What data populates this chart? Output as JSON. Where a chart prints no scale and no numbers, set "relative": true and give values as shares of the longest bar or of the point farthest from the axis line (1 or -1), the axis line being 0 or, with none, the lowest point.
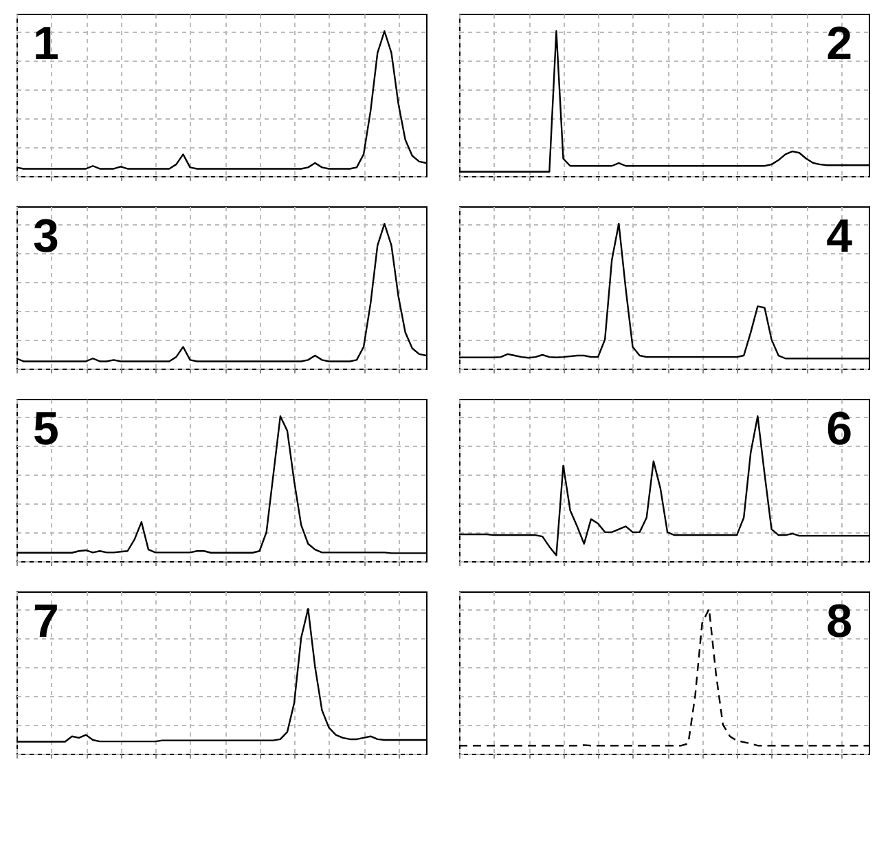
{
  "chart_data": [
    {
      "type": "line",
      "relative": true,
      "grid": true,
      "line_style": "solid",
      "annotations": [
        "1"
      ],
      "categories": [
        null,
        null,
        null,
        null,
        null,
        null,
        null,
        null,
        null,
        null,
        null,
        null,
        null,
        null,
        null,
        null,
        null,
        null,
        null,
        null,
        null,
        null,
        null,
        null,
        null,
        null,
        null,
        null,
        null,
        null,
        null,
        null,
        null,
        null,
        null,
        null,
        null,
        null,
        null,
        null,
        null,
        null,
        null,
        null,
        null,
        null,
        null,
        null,
        null,
        null,
        null,
        null,
        null,
        null,
        null,
        null,
        null,
        null,
        null,
        null
      ],
      "series": [
        {
          "color": "#000000",
          "values": [
            0.06,
            0.05,
            0.05,
            0.05,
            0.05,
            0.05,
            0.05,
            0.05,
            0.05,
            0.05,
            0.05,
            0.07,
            0.05,
            0.05,
            0.05,
            0.065,
            0.05,
            0.05,
            0.05,
            0.05,
            0.05,
            0.05,
            0.05,
            0.08,
            0.15,
            0.06,
            0.05,
            0.05,
            0.05,
            0.05,
            0.05,
            0.05,
            0.05,
            0.05,
            0.05,
            0.05,
            0.05,
            0.05,
            0.05,
            0.05,
            0.05,
            0.05,
            0.06,
            0.09,
            0.06,
            0.05,
            0.05,
            0.05,
            0.05,
            0.06,
            0.15,
            0.45,
            0.85,
            1.0,
            0.85,
            0.5,
            0.25,
            0.14,
            0.1,
            0.09
          ]
        }
      ]
    },
    {
      "type": "line",
      "relative": true,
      "grid": true,
      "line_style": "solid",
      "annotations": [
        "2"
      ],
      "categories": [
        null,
        null,
        null,
        null,
        null,
        null,
        null,
        null,
        null,
        null,
        null,
        null,
        null,
        null,
        null,
        null,
        null,
        null,
        null,
        null,
        null,
        null,
        null,
        null,
        null,
        null,
        null,
        null,
        null,
        null,
        null,
        null,
        null,
        null,
        null,
        null,
        null,
        null,
        null,
        null,
        null,
        null,
        null,
        null,
        null,
        null,
        null,
        null,
        null,
        null,
        null,
        null,
        null,
        null,
        null,
        null,
        null,
        null,
        null,
        null
      ],
      "series": [
        {
          "color": "#000000",
          "values": [
            0.03,
            0.03,
            0.03,
            0.03,
            0.03,
            0.03,
            0.03,
            0.03,
            0.03,
            0.03,
            0.03,
            0.03,
            0.03,
            0.03,
            1.0,
            0.12,
            0.07,
            0.07,
            0.07,
            0.07,
            0.07,
            0.07,
            0.07,
            0.09,
            0.07,
            0.07,
            0.07,
            0.07,
            0.07,
            0.07,
            0.07,
            0.07,
            0.07,
            0.07,
            0.07,
            0.07,
            0.07,
            0.07,
            0.07,
            0.07,
            0.07,
            0.07,
            0.07,
            0.07,
            0.07,
            0.08,
            0.11,
            0.15,
            0.17,
            0.16,
            0.12,
            0.09,
            0.08,
            0.075,
            0.075,
            0.075,
            0.075,
            0.075,
            0.075,
            0.075
          ]
        }
      ]
    },
    {
      "type": "line",
      "relative": true,
      "grid": true,
      "line_style": "solid",
      "annotations": [
        "3"
      ],
      "categories": [
        null,
        null,
        null,
        null,
        null,
        null,
        null,
        null,
        null,
        null,
        null,
        null,
        null,
        null,
        null,
        null,
        null,
        null,
        null,
        null,
        null,
        null,
        null,
        null,
        null,
        null,
        null,
        null,
        null,
        null,
        null,
        null,
        null,
        null,
        null,
        null,
        null,
        null,
        null,
        null,
        null,
        null,
        null,
        null,
        null,
        null,
        null,
        null,
        null,
        null,
        null,
        null,
        null,
        null,
        null,
        null,
        null,
        null,
        null,
        null
      ],
      "series": [
        {
          "color": "#000000",
          "values": [
            0.07,
            0.05,
            0.05,
            0.05,
            0.05,
            0.05,
            0.05,
            0.05,
            0.05,
            0.05,
            0.05,
            0.07,
            0.05,
            0.05,
            0.06,
            0.05,
            0.05,
            0.05,
            0.05,
            0.05,
            0.05,
            0.05,
            0.05,
            0.08,
            0.15,
            0.06,
            0.05,
            0.05,
            0.05,
            0.05,
            0.05,
            0.05,
            0.05,
            0.05,
            0.05,
            0.05,
            0.05,
            0.05,
            0.05,
            0.05,
            0.05,
            0.05,
            0.06,
            0.09,
            0.06,
            0.05,
            0.05,
            0.05,
            0.05,
            0.06,
            0.15,
            0.45,
            0.85,
            1.0,
            0.85,
            0.5,
            0.25,
            0.14,
            0.1,
            0.09
          ]
        }
      ]
    },
    {
      "type": "line",
      "relative": true,
      "grid": true,
      "line_style": "solid",
      "annotations": [
        "4"
      ],
      "categories": [
        null,
        null,
        null,
        null,
        null,
        null,
        null,
        null,
        null,
        null,
        null,
        null,
        null,
        null,
        null,
        null,
        null,
        null,
        null,
        null,
        null,
        null,
        null,
        null,
        null,
        null,
        null,
        null,
        null,
        null,
        null,
        null,
        null,
        null,
        null,
        null,
        null,
        null,
        null,
        null,
        null,
        null,
        null,
        null,
        null,
        null,
        null,
        null,
        null,
        null,
        null,
        null,
        null,
        null,
        null,
        null,
        null,
        null,
        null,
        null
      ],
      "series": [
        {
          "color": "#000000",
          "values": [
            0.077,
            0.077,
            0.077,
            0.077,
            0.077,
            0.077,
            0.08,
            0.1,
            0.09,
            0.08,
            0.075,
            0.08,
            0.095,
            0.08,
            0.077,
            0.08,
            0.085,
            0.09,
            0.09,
            0.08,
            0.08,
            0.2,
            0.75,
            1.0,
            0.55,
            0.15,
            0.09,
            0.08,
            0.08,
            0.08,
            0.08,
            0.08,
            0.08,
            0.08,
            0.08,
            0.08,
            0.08,
            0.08,
            0.08,
            0.08,
            0.08,
            0.09,
            0.25,
            0.43,
            0.42,
            0.2,
            0.09,
            0.07,
            0.07,
            0.07,
            0.07,
            0.07,
            0.07,
            0.07,
            0.07,
            0.07,
            0.07,
            0.07,
            0.07,
            0.07
          ]
        }
      ]
    },
    {
      "type": "line",
      "relative": true,
      "grid": true,
      "line_style": "solid",
      "annotations": [
        "5"
      ],
      "categories": [
        null,
        null,
        null,
        null,
        null,
        null,
        null,
        null,
        null,
        null,
        null,
        null,
        null,
        null,
        null,
        null,
        null,
        null,
        null,
        null,
        null,
        null,
        null,
        null,
        null,
        null,
        null,
        null,
        null,
        null,
        null,
        null,
        null,
        null,
        null,
        null,
        null,
        null,
        null,
        null,
        null,
        null,
        null,
        null,
        null,
        null,
        null,
        null,
        null,
        null,
        null,
        null,
        null,
        null,
        null,
        null,
        null,
        null,
        null,
        null
      ],
      "series": [
        {
          "color": "#000000",
          "values": [
            0.058,
            0.058,
            0.058,
            0.058,
            0.058,
            0.058,
            0.058,
            0.058,
            0.058,
            0.07,
            0.075,
            0.06,
            0.07,
            0.06,
            0.06,
            0.065,
            0.07,
            0.15,
            0.27,
            0.08,
            0.06,
            0.06,
            0.06,
            0.06,
            0.06,
            0.06,
            0.07,
            0.07,
            0.058,
            0.058,
            0.058,
            0.058,
            0.058,
            0.058,
            0.058,
            0.07,
            0.2,
            0.6,
            1.0,
            0.9,
            0.55,
            0.25,
            0.12,
            0.08,
            0.06,
            0.06,
            0.06,
            0.06,
            0.06,
            0.06,
            0.06,
            0.06,
            0.06,
            0.06,
            0.055,
            0.055,
            0.055,
            0.055,
            0.055,
            0.055
          ]
        }
      ]
    },
    {
      "type": "line",
      "relative": true,
      "grid": true,
      "line_style": "solid",
      "annotations": [
        "6"
      ],
      "categories": [
        null,
        null,
        null,
        null,
        null,
        null,
        null,
        null,
        null,
        null,
        null,
        null,
        null,
        null,
        null,
        null,
        null,
        null,
        null,
        null,
        null,
        null,
        null,
        null,
        null,
        null,
        null,
        null,
        null,
        null,
        null,
        null,
        null,
        null,
        null,
        null,
        null,
        null,
        null,
        null,
        null,
        null,
        null,
        null,
        null,
        null,
        null,
        null,
        null,
        null,
        null,
        null,
        null,
        null,
        null,
        null,
        null,
        null,
        null,
        null
      ],
      "series": [
        {
          "color": "#000000",
          "values": [
            0.185,
            0.185,
            0.185,
            0.185,
            0.185,
            0.18,
            0.18,
            0.18,
            0.18,
            0.18,
            0.18,
            0.18,
            0.17,
            0.1,
            0.04,
            0.66,
            0.35,
            0.24,
            0.12,
            0.29,
            0.26,
            0.2,
            0.2,
            0.22,
            0.24,
            0.2,
            0.2,
            0.3,
            0.69,
            0.5,
            0.2,
            0.18,
            0.18,
            0.18,
            0.18,
            0.18,
            0.18,
            0.18,
            0.18,
            0.18,
            0.18,
            0.3,
            0.75,
            1.0,
            0.6,
            0.22,
            0.18,
            0.18,
            0.19,
            0.175,
            0.175,
            0.175,
            0.175,
            0.175,
            0.175,
            0.175,
            0.175,
            0.175,
            0.175,
            0.175
          ]
        }
      ]
    },
    {
      "type": "line",
      "relative": true,
      "grid": true,
      "line_style": "solid",
      "annotations": [
        "7"
      ],
      "categories": [
        null,
        null,
        null,
        null,
        null,
        null,
        null,
        null,
        null,
        null,
        null,
        null,
        null,
        null,
        null,
        null,
        null,
        null,
        null,
        null,
        null,
        null,
        null,
        null,
        null,
        null,
        null,
        null,
        null,
        null,
        null,
        null,
        null,
        null,
        null,
        null,
        null,
        null,
        null,
        null,
        null,
        null,
        null,
        null,
        null,
        null,
        null,
        null,
        null,
        null,
        null,
        null,
        null,
        null,
        null,
        null,
        null,
        null,
        null,
        null
      ],
      "series": [
        {
          "color": "#000000",
          "values": [
            0.083,
            0.083,
            0.083,
            0.083,
            0.083,
            0.083,
            0.083,
            0.083,
            0.12,
            0.11,
            0.13,
            0.095,
            0.085,
            0.085,
            0.085,
            0.085,
            0.085,
            0.085,
            0.085,
            0.085,
            0.085,
            0.092,
            0.092,
            0.092,
            0.092,
            0.092,
            0.092,
            0.092,
            0.092,
            0.092,
            0.092,
            0.092,
            0.092,
            0.092,
            0.092,
            0.092,
            0.092,
            0.092,
            0.1,
            0.15,
            0.35,
            0.8,
            1.0,
            0.6,
            0.3,
            0.18,
            0.13,
            0.11,
            0.1,
            0.1,
            0.11,
            0.12,
            0.1,
            0.095,
            0.095,
            0.095,
            0.095,
            0.095,
            0.095,
            0.095
          ]
        }
      ]
    },
    {
      "type": "line",
      "relative": true,
      "grid": true,
      "line_style": "dashed",
      "annotations": [
        "8"
      ],
      "categories": [
        null,
        null,
        null,
        null,
        null,
        null,
        null,
        null,
        null,
        null,
        null,
        null,
        null,
        null,
        null,
        null,
        null,
        null,
        null,
        null,
        null,
        null,
        null,
        null,
        null,
        null,
        null,
        null,
        null,
        null,
        null,
        null,
        null,
        null,
        null,
        null,
        null,
        null,
        null,
        null,
        null,
        null,
        null,
        null,
        null,
        null,
        null,
        null,
        null,
        null,
        null,
        null,
        null,
        null,
        null,
        null,
        null,
        null,
        null,
        null
      ],
      "series": [
        {
          "color": "#000000",
          "values": [
            0.056,
            0.056,
            0.056,
            0.056,
            0.056,
            0.056,
            0.056,
            0.056,
            0.056,
            0.056,
            0.056,
            0.056,
            0.056,
            0.056,
            0.056,
            0.056,
            0.056,
            0.056,
            0.06,
            0.056,
            0.056,
            0.056,
            0.056,
            0.056,
            0.056,
            0.056,
            0.056,
            0.056,
            0.056,
            0.056,
            0.056,
            0.056,
            0.056,
            0.07,
            0.4,
            0.9,
            1.0,
            0.55,
            0.2,
            0.12,
            0.09,
            0.08,
            0.07,
            0.056,
            0.056,
            0.056,
            0.056,
            0.056,
            0.056,
            0.056,
            0.056,
            0.056,
            0.056,
            0.056,
            0.056,
            0.056,
            0.056,
            0.056,
            0.056,
            0.056
          ]
        }
      ]
    }
  ]
}
